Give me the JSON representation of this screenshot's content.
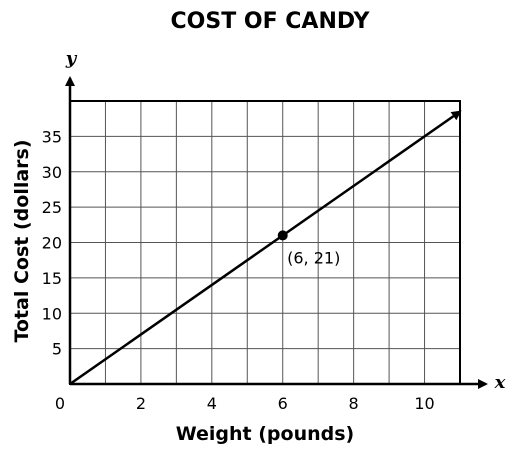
{
  "chart_data": {
    "type": "line",
    "title": "COST OF CANDY",
    "xlabel": "Weight (pounds)",
    "ylabel": "Total Cost (dollars)",
    "x_axis_variable": "x",
    "y_axis_variable": "y",
    "xlim": [
      0,
      11
    ],
    "ylim": [
      0,
      40
    ],
    "x_ticks": [
      0,
      2,
      4,
      6,
      8,
      10
    ],
    "y_ticks": [
      5,
      10,
      15,
      20,
      25,
      30,
      35
    ],
    "grid": true,
    "series": [
      {
        "x": [
          0,
          11
        ],
        "y": [
          0,
          38.5
        ]
      }
    ],
    "points": [
      {
        "x": 6,
        "y": 21,
        "label": "(6, 21)"
      }
    ]
  }
}
